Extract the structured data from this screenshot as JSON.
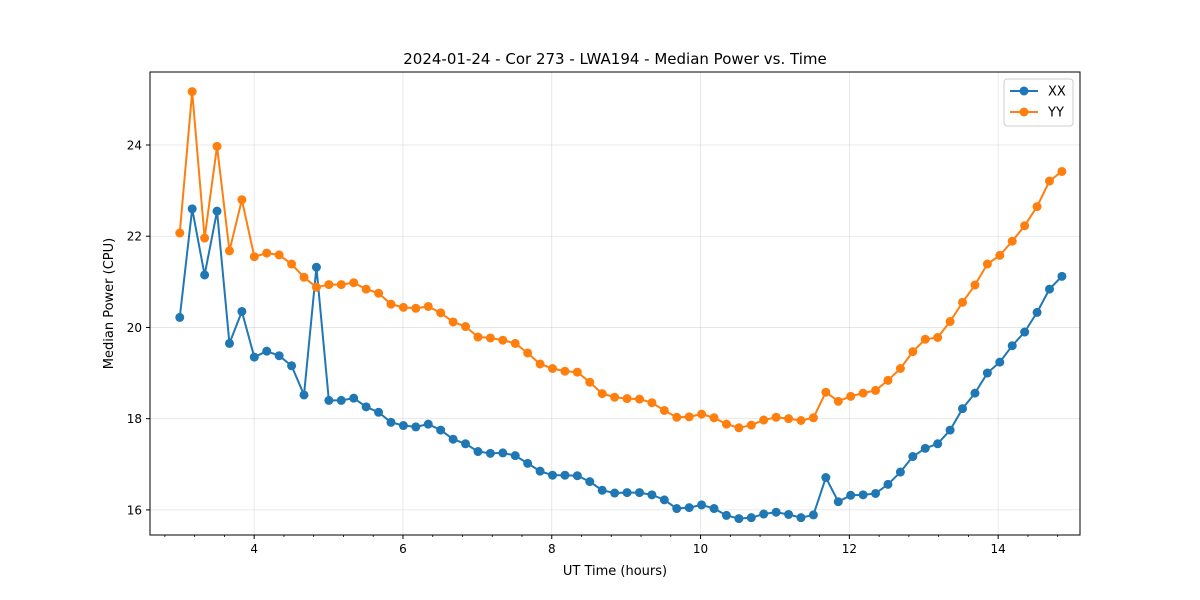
{
  "chart_data": {
    "type": "line",
    "title": "2024-01-24 - Cor 273 - LWA194 - Median Power vs. Time",
    "xlabel": "UT Time (hours)",
    "ylabel": "Median Power (CPU)",
    "xlim": [
      2.6,
      15.1
    ],
    "ylim": [
      15.45,
      25.6
    ],
    "xticks": [
      4,
      6,
      8,
      10,
      12,
      14
    ],
    "xtick_labels": [
      "4",
      "6",
      "8",
      "10",
      "12",
      "14"
    ],
    "xminor_step": 0.4,
    "yticks": [
      16,
      18,
      20,
      22,
      24
    ],
    "ytick_labels": [
      "16",
      "18",
      "20",
      "22",
      "24"
    ],
    "grid": true,
    "legend_position": "top-right",
    "x_start": 3.0,
    "x_step": 0.167,
    "series": [
      {
        "name": "XX",
        "color": "#1f77b4",
        "values": [
          20.22,
          22.6,
          21.15,
          22.55,
          19.65,
          20.35,
          19.35,
          19.48,
          19.38,
          19.16,
          18.52,
          21.32,
          18.4,
          18.4,
          18.45,
          18.26,
          18.14,
          17.92,
          17.85,
          17.82,
          17.88,
          17.75,
          17.55,
          17.45,
          17.28,
          17.24,
          17.25,
          17.19,
          17.02,
          16.85,
          16.76,
          16.76,
          16.75,
          16.62,
          16.43,
          16.37,
          16.38,
          16.38,
          16.33,
          16.22,
          16.03,
          16.05,
          16.11,
          16.03,
          15.88,
          15.81,
          15.83,
          15.91,
          15.95,
          15.9,
          15.83,
          15.89,
          16.71,
          16.18,
          16.32,
          16.33,
          16.36,
          16.56,
          16.83,
          17.17,
          17.35,
          17.45,
          17.75,
          18.22,
          18.56,
          19.0,
          19.24,
          19.6,
          19.9,
          20.33,
          20.84,
          21.12
        ]
      },
      {
        "name": "YY",
        "color": "#ff7f0e",
        "values": [
          22.07,
          25.17,
          21.96,
          23.97,
          21.68,
          22.8,
          21.55,
          21.63,
          21.59,
          21.39,
          21.1,
          20.88,
          20.94,
          20.94,
          20.98,
          20.84,
          20.75,
          20.51,
          20.44,
          20.42,
          20.46,
          20.32,
          20.12,
          20.02,
          19.79,
          19.77,
          19.72,
          19.65,
          19.44,
          19.2,
          19.1,
          19.04,
          19.02,
          18.8,
          18.55,
          18.47,
          18.44,
          18.43,
          18.35,
          18.18,
          18.03,
          18.04,
          18.1,
          18.02,
          17.88,
          17.8,
          17.86,
          17.97,
          18.03,
          18.0,
          17.96,
          18.02,
          18.58,
          18.38,
          18.49,
          18.56,
          18.62,
          18.84,
          19.1,
          19.47,
          19.74,
          19.78,
          20.13,
          20.55,
          20.93,
          21.39,
          21.58,
          21.89,
          22.23,
          22.65,
          23.21,
          23.42
        ]
      }
    ]
  }
}
